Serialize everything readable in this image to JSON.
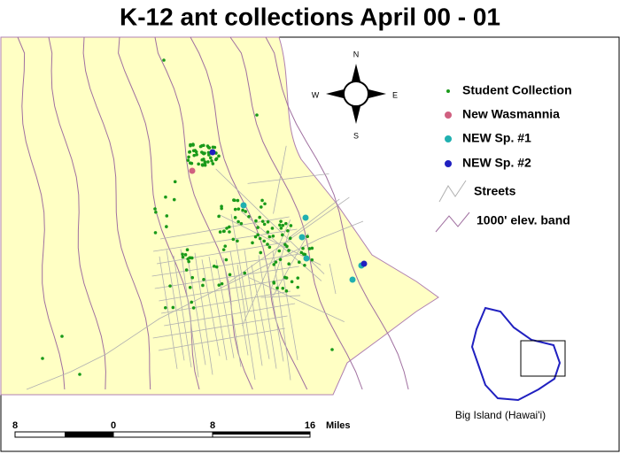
{
  "title": "K-12 ant collections April 00 - 01",
  "compass": {
    "north": "N",
    "south": "S",
    "east": "E",
    "west": "W"
  },
  "legend": [
    "Student Collection",
    "New Wasmannia",
    "NEW Sp. #1",
    "NEW Sp. #2",
    "Streets",
    "1000' elev. band"
  ],
  "scale_bar": {
    "labels": [
      8,
      0,
      8,
      16
    ],
    "unit": "Miles"
  },
  "inset": {
    "label": "Big Island (Hawai'i)"
  }
}
